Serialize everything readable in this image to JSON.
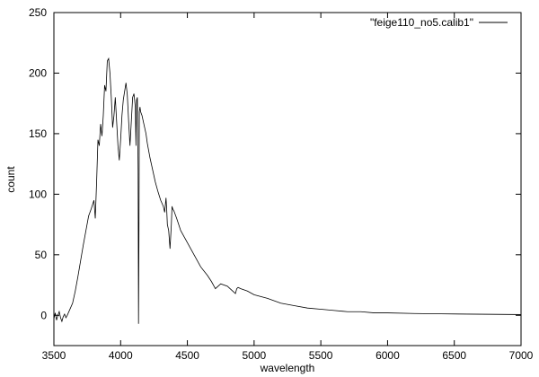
{
  "chart_data": {
    "type": "line",
    "title": "",
    "xlabel": "wavelength",
    "ylabel": "count",
    "xlim": [
      3500,
      7000
    ],
    "ylim": [
      -25,
      250
    ],
    "xticks": [
      3500,
      4000,
      4500,
      5000,
      5500,
      6000,
      6500,
      7000
    ],
    "yticks": [
      0,
      50,
      100,
      150,
      200,
      250
    ],
    "grid": false,
    "legend_position": "top-right",
    "series": [
      {
        "name": "\"feige110_no5.calib1\"",
        "color": "#000000",
        "x": [
          3500,
          3510,
          3520,
          3530,
          3540,
          3550,
          3560,
          3570,
          3580,
          3590,
          3600,
          3620,
          3640,
          3660,
          3680,
          3700,
          3720,
          3740,
          3760,
          3780,
          3800,
          3810,
          3820,
          3830,
          3840,
          3850,
          3860,
          3870,
          3880,
          3890,
          3900,
          3910,
          3920,
          3930,
          3940,
          3950,
          3960,
          3970,
          3980,
          3990,
          4000,
          4010,
          4020,
          4030,
          4040,
          4050,
          4060,
          4070,
          4080,
          4090,
          4100,
          4110,
          4115,
          4120,
          4125,
          4128,
          4131,
          4134,
          4137,
          4140,
          4145,
          4150,
          4160,
          4170,
          4180,
          4190,
          4200,
          4220,
          4240,
          4260,
          4280,
          4300,
          4320,
          4330,
          4340,
          4345,
          4350,
          4360,
          4370,
          4380,
          4385,
          4390,
          4400,
          4420,
          4450,
          4500,
          4550,
          4600,
          4650,
          4680,
          4700,
          4710,
          4750,
          4800,
          4840,
          4860,
          4870,
          4880,
          4900,
          4950,
          5000,
          5100,
          5200,
          5300,
          5400,
          5500,
          5600,
          5700,
          5800,
          5900,
          6000,
          6200,
          6400,
          6600,
          6800,
          7000
        ],
        "y": [
          -3,
          2,
          -4,
          0,
          3,
          -2,
          -5,
          -1,
          1,
          -2,
          0,
          5,
          10,
          20,
          32,
          45,
          58,
          70,
          82,
          88,
          95,
          80,
          110,
          145,
          140,
          158,
          148,
          165,
          190,
          185,
          210,
          212,
          200,
          180,
          155,
          165,
          180,
          160,
          140,
          128,
          145,
          165,
          178,
          185,
          192,
          182,
          160,
          140,
          160,
          180,
          183,
          172,
          140,
          178,
          180,
          160,
          120,
          -7,
          60,
          168,
          172,
          168,
          165,
          160,
          155,
          150,
          142,
          130,
          120,
          110,
          102,
          95,
          90,
          85,
          97,
          88,
          75,
          70,
          55,
          75,
          90,
          88,
          86,
          80,
          70,
          60,
          50,
          40,
          33,
          28,
          24,
          22,
          26,
          24,
          20,
          18,
          22,
          23,
          22,
          20,
          17,
          14,
          10,
          8,
          6,
          5,
          4,
          3,
          3,
          2,
          2,
          1.5,
          1.2,
          1,
          0.8,
          0.6
        ]
      }
    ]
  }
}
